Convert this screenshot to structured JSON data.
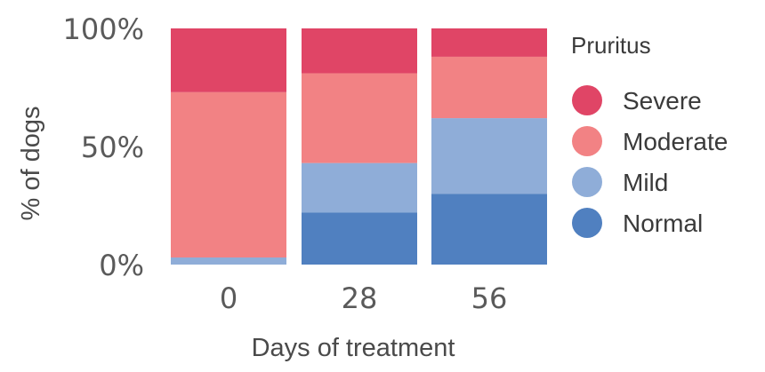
{
  "chart_data": {
    "type": "bar",
    "stacked": true,
    "orientation": "vertical",
    "categories": [
      "0",
      "28",
      "56"
    ],
    "series": [
      {
        "name": "Normal",
        "color": "#5080c0",
        "values": [
          0,
          22,
          30
        ]
      },
      {
        "name": "Mild",
        "color": "#8fadd8",
        "values": [
          3,
          21,
          32
        ]
      },
      {
        "name": "Moderate",
        "color": "#f28284",
        "values": [
          70,
          38,
          26
        ]
      },
      {
        "name": "Severe",
        "color": "#e04566",
        "values": [
          27,
          19,
          12
        ]
      }
    ],
    "legend_order": [
      "Severe",
      "Moderate",
      "Mild",
      "Normal"
    ],
    "legend_title": "Pruritus",
    "legend_position": "right",
    "xlabel": "Days of treatment",
    "ylabel": "% of dogs",
    "yticks": [
      "0%",
      "50%",
      "100%"
    ],
    "ytick_values": [
      0,
      50,
      100
    ],
    "ylim": [
      0,
      100
    ],
    "grid": false
  }
}
